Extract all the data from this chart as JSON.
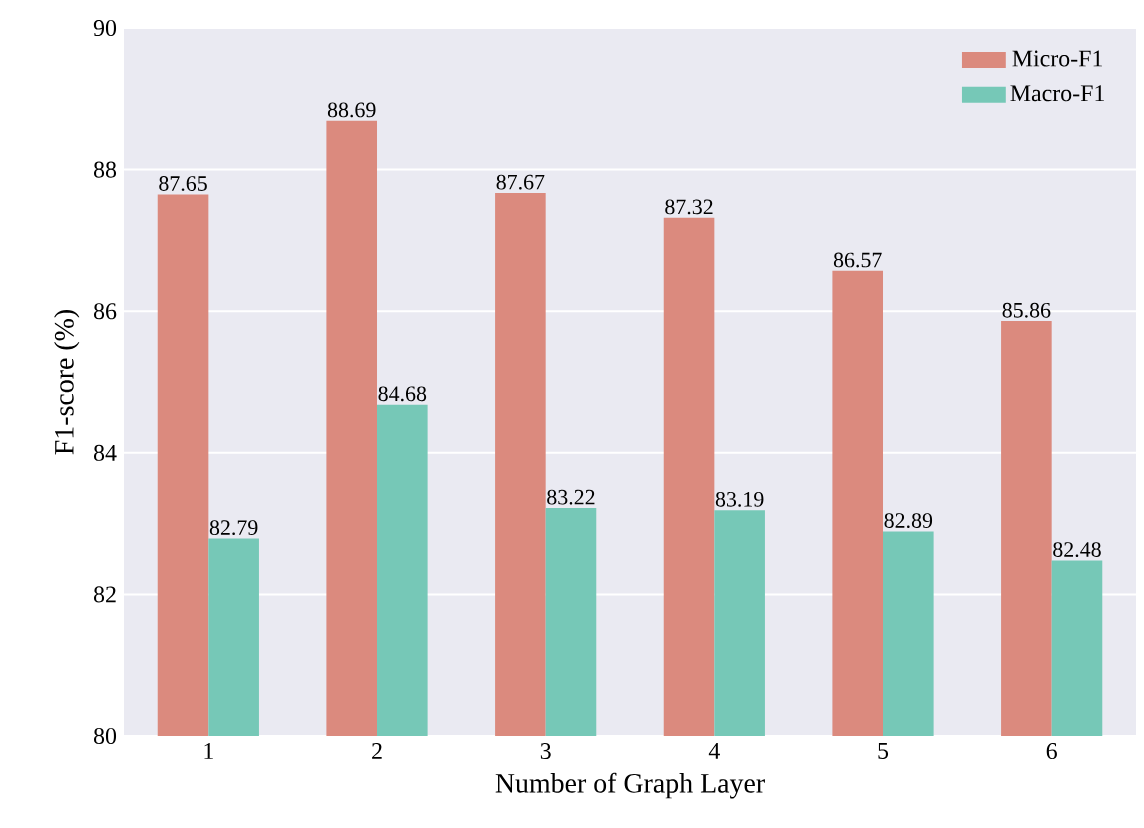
{
  "chart_data": {
    "type": "bar",
    "xlabel": "Number of Graph Layer",
    "ylabel": "F1-score (%)",
    "categories": [
      "1",
      "2",
      "3",
      "4",
      "5",
      "6"
    ],
    "series": [
      {
        "name": "Micro-F1",
        "color": "#db8a7e",
        "values": [
          87.65,
          88.69,
          87.67,
          87.32,
          86.57,
          85.86
        ]
      },
      {
        "name": "Macro-F1",
        "color": "#76c8b7",
        "values": [
          82.79,
          84.68,
          83.22,
          83.19,
          82.89,
          82.48
        ]
      }
    ],
    "ylim": [
      80,
      90
    ],
    "yticks": [
      80,
      82,
      84,
      86,
      88,
      90
    ],
    "grid": "y",
    "legend": "top right",
    "data_labels": true
  }
}
